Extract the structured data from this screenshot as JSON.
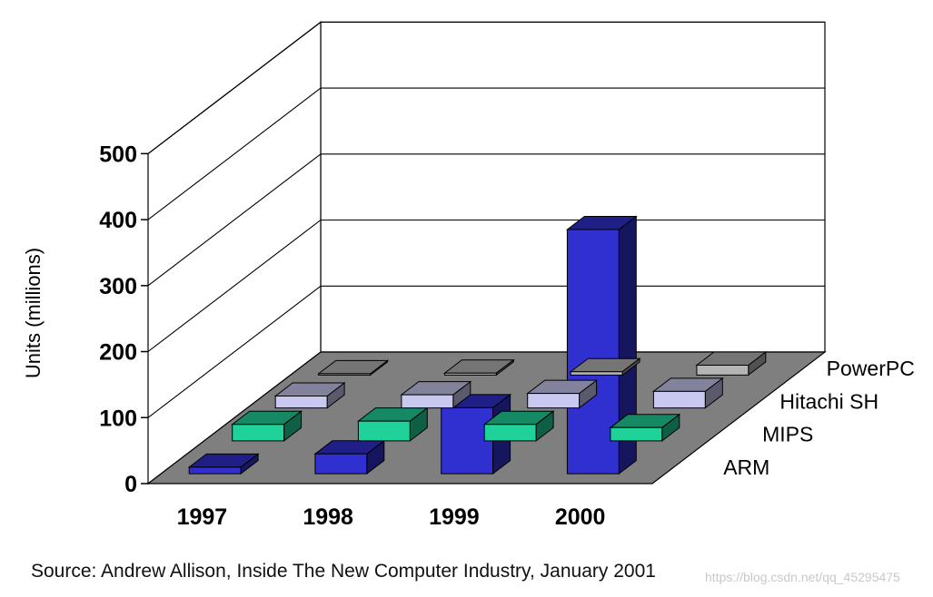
{
  "chart_data": {
    "type": "bar",
    "style": "3d-grouped",
    "categories": [
      "1997",
      "1998",
      "1999",
      "2000"
    ],
    "series": [
      {
        "name": "ARM",
        "values": [
          10,
          30,
          100,
          370
        ],
        "color": "#3030d0"
      },
      {
        "name": "MIPS",
        "values": [
          25,
          30,
          25,
          20
        ],
        "color": "#1fd29a"
      },
      {
        "name": "Hitachi SH",
        "values": [
          18,
          20,
          22,
          25
        ],
        "color": "#c8c8f0"
      },
      {
        "name": "PowerPC",
        "values": [
          2,
          3,
          5,
          15
        ],
        "color": "#b4b4b4"
      }
    ],
    "yticks": [
      0,
      100,
      200,
      300,
      400,
      500
    ],
    "ylim": [
      0,
      500
    ],
    "ylabel": "Units (millions)",
    "xlabel": "",
    "grid": true,
    "source": "Source: Andrew Allison, Inside The New Computer Industry, January 2001"
  },
  "watermark": "https://blog.csdn.net/qq_45295475"
}
